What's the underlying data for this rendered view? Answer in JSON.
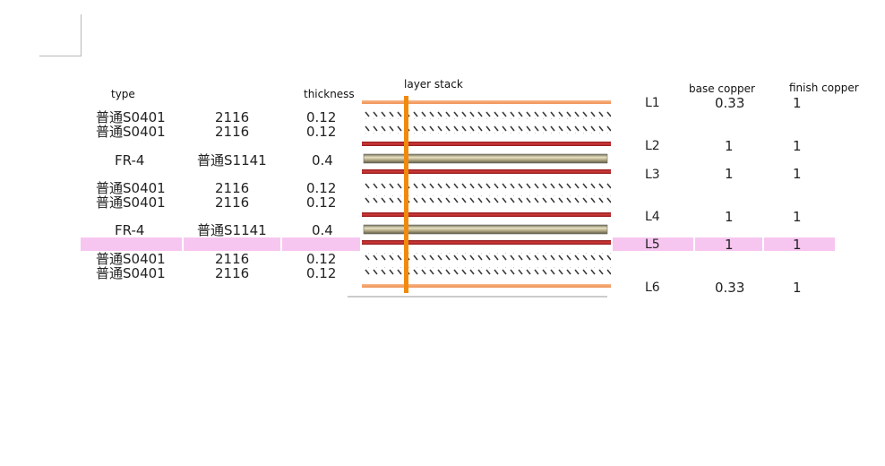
{
  "headers": {
    "type": "type",
    "thickness": "thickness",
    "layer_stack": "layer stack",
    "base_copper": "base copper",
    "finish_copper": "finish copper"
  },
  "rows": [
    {
      "type": "普通S0401",
      "spec": "2116",
      "thickness": "0.12"
    },
    {
      "type": "普通S0401",
      "spec": "2116",
      "thickness": "0.12"
    },
    {
      "type": "FR-4",
      "spec": "普通S1141",
      "thickness": "0.4"
    },
    {
      "type": "普通S0401",
      "spec": "2116",
      "thickness": "0.12"
    },
    {
      "type": "普通S0401",
      "spec": "2116",
      "thickness": "0.12"
    },
    {
      "type": "FR-4",
      "spec": "普通S1141",
      "thickness": "0.4"
    },
    {
      "type": "普通S0401",
      "spec": "2116",
      "thickness": "0.12"
    },
    {
      "type": "普通S0401",
      "spec": "2116",
      "thickness": "0.12"
    }
  ],
  "layers": [
    {
      "name": "L1",
      "base_copper": "0.33",
      "finish_copper": "1"
    },
    {
      "name": "L2",
      "base_copper": "1",
      "finish_copper": "1"
    },
    {
      "name": "L3",
      "base_copper": "1",
      "finish_copper": "1"
    },
    {
      "name": "L4",
      "base_copper": "1",
      "finish_copper": "1"
    },
    {
      "name": "L5",
      "base_copper": "1",
      "finish_copper": "1"
    },
    {
      "name": "L6",
      "base_copper": "0.33",
      "finish_copper": "1"
    }
  ],
  "selected_layer": "L5",
  "colors": {
    "outer_copper": "#f4a26a",
    "inner_copper": "#c0282c",
    "core": "#b0a683",
    "drill": "#f08a0e",
    "highlight": "#f7c6f0"
  }
}
